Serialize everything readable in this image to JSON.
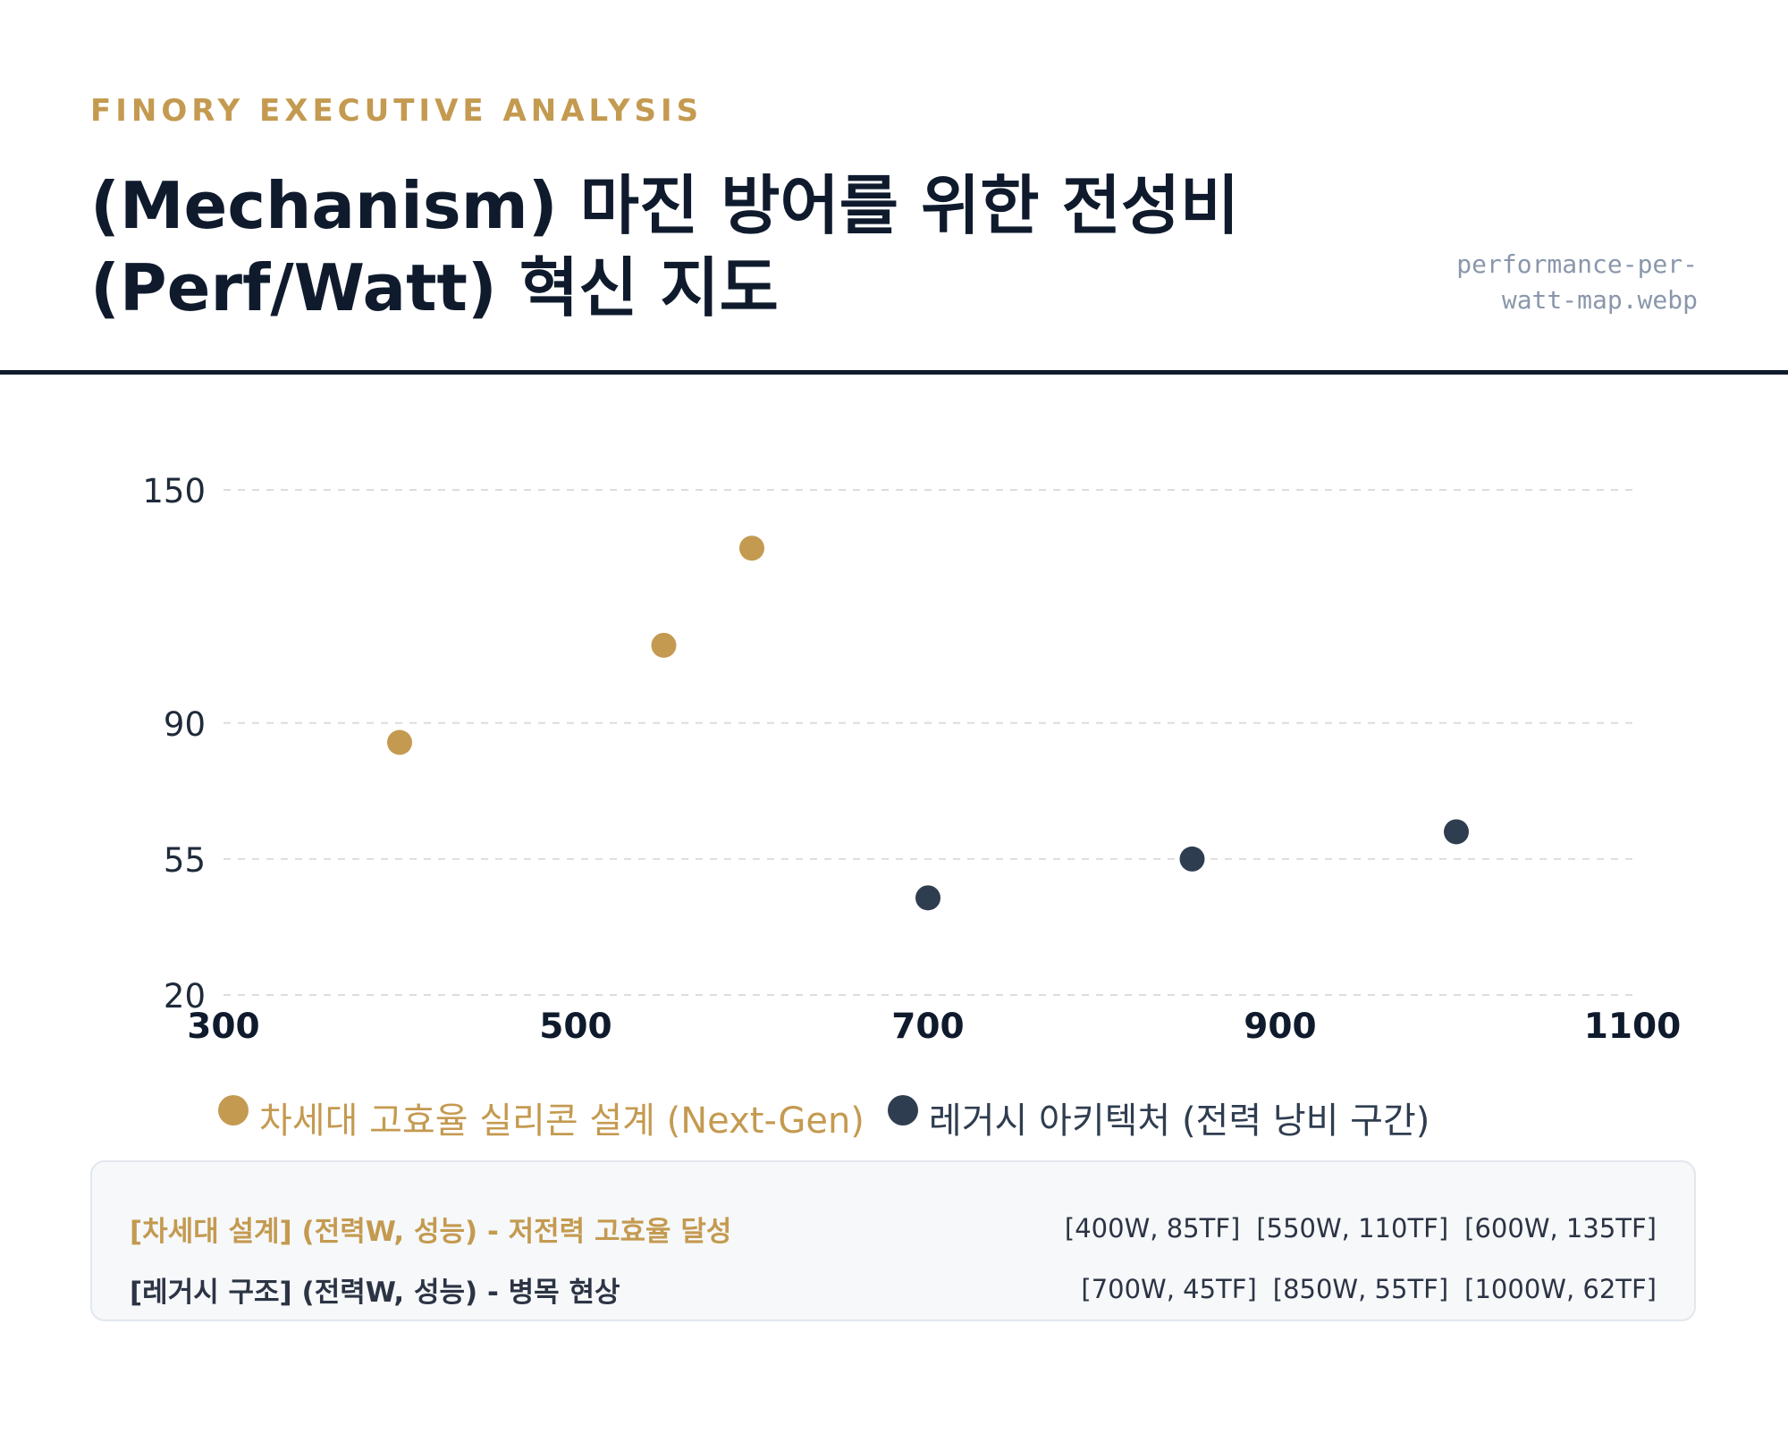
{
  "header": {
    "kicker": "FINORY EXECUTIVE ANALYSIS",
    "title": "(Mechanism) 마진 방어를 위한 전성비 (Perf/Watt) 혁신 지도",
    "filename": "performance-per-watt-map.webp"
  },
  "colors": {
    "next_gen": "#c49a50",
    "legacy": "#2f3d50",
    "title": "#0f1b2d",
    "grid": "#dddddd"
  },
  "chart_data": {
    "type": "scatter",
    "title": "",
    "xlabel": "",
    "ylabel": "",
    "xlim": [
      300,
      1100
    ],
    "ylim": [
      20,
      150
    ],
    "x_ticks": [
      300,
      500,
      700,
      900,
      1100
    ],
    "y_ticks": [
      20,
      55,
      90,
      150
    ],
    "grid": "horizontal dashed",
    "legend": "bottom",
    "series": [
      {
        "name": "차세대 고효율 실리콘 설계 (Next-Gen)",
        "color": "#c49a50",
        "points": [
          [
            400,
            85
          ],
          [
            550,
            110
          ],
          [
            600,
            135
          ]
        ]
      },
      {
        "name": "레거시 아키텍처 (전력 낭비 구간)",
        "color": "#2f3d50",
        "points": [
          [
            700,
            45
          ],
          [
            850,
            55
          ],
          [
            1000,
            62
          ]
        ]
      }
    ]
  },
  "summary": {
    "next_gen": {
      "label": "[차세대 설계] (전력W, 성능) - 저전력 고효율 달성",
      "values": [
        "[400W, 85TF]",
        "[550W, 110TF]",
        "[600W, 135TF]"
      ]
    },
    "legacy": {
      "label": "[레거시 구조] (전력W, 성능) - 병목 현상",
      "values": [
        "[700W, 45TF]",
        "[850W, 55TF]",
        "[1000W, 62TF]"
      ]
    }
  }
}
